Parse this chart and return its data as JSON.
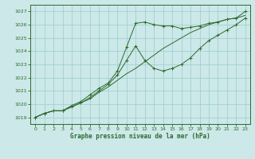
{
  "background_color": "#cce8e8",
  "grid_color": "#99cccc",
  "line_color": "#2d6a2d",
  "xlabel": "Graphe pression niveau de la mer (hPa)",
  "ylim": [
    1018.5,
    1027.5
  ],
  "xlim": [
    -0.5,
    23.5
  ],
  "yticks": [
    1019,
    1020,
    1021,
    1022,
    1023,
    1024,
    1025,
    1026,
    1027
  ],
  "xticks": [
    0,
    1,
    2,
    3,
    4,
    5,
    6,
    7,
    8,
    9,
    10,
    11,
    12,
    13,
    14,
    15,
    16,
    17,
    18,
    19,
    20,
    21,
    22,
    23
  ],
  "series1": [
    1019.0,
    1019.3,
    1019.5,
    1019.5,
    1019.8,
    1020.1,
    1020.4,
    1020.9,
    1021.3,
    1021.8,
    1022.3,
    1022.7,
    1023.2,
    1023.7,
    1024.2,
    1024.6,
    1025.0,
    1025.4,
    1025.7,
    1026.0,
    1026.2,
    1026.4,
    1026.5,
    1026.7
  ],
  "series2": [
    1019.0,
    1019.3,
    1019.5,
    1019.5,
    1019.8,
    1020.1,
    1020.5,
    1021.0,
    1021.5,
    1022.2,
    1023.3,
    1024.4,
    1023.3,
    1022.7,
    1022.5,
    1022.7,
    1023.0,
    1023.5,
    1024.2,
    1024.8,
    1025.2,
    1025.6,
    1026.0,
    1026.5
  ],
  "series3": [
    1019.0,
    1019.3,
    1019.5,
    1019.5,
    1019.9,
    1020.2,
    1020.7,
    1021.2,
    1021.6,
    1022.5,
    1024.3,
    1026.1,
    1026.2,
    1026.0,
    1025.9,
    1025.9,
    1025.7,
    1025.8,
    1025.9,
    1026.1,
    1026.2,
    1026.4,
    1026.5,
    1027.0
  ]
}
